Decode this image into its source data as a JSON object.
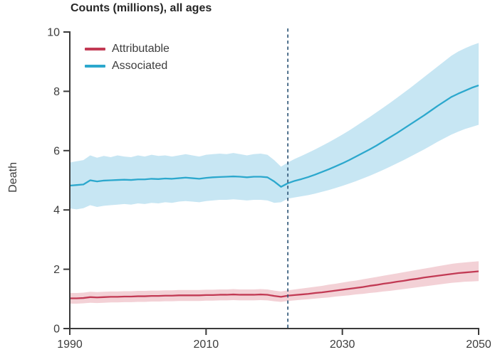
{
  "chart_data": {
    "type": "line",
    "title": "Counts (millions), all ages",
    "ylabel": "Death",
    "xlabel": "",
    "xlim": [
      1990,
      2050
    ],
    "ylim": [
      0,
      10
    ],
    "xticks": [
      1990,
      2010,
      2030,
      2050
    ],
    "yticks": [
      0,
      2,
      4,
      6,
      8,
      10
    ],
    "grid": false,
    "legend_position": "top-left-inside",
    "forecast_divider": {
      "x": 2022,
      "style": "dashed",
      "color": "#33597a"
    },
    "axis_color": "#3a3a3a",
    "x": [
      1990,
      1991,
      1992,
      1993,
      1994,
      1995,
      1996,
      1997,
      1998,
      1999,
      2000,
      2001,
      2002,
      2003,
      2004,
      2005,
      2006,
      2007,
      2008,
      2009,
      2010,
      2011,
      2012,
      2013,
      2014,
      2015,
      2016,
      2017,
      2018,
      2019,
      2020,
      2021,
      2022,
      2023,
      2024,
      2025,
      2026,
      2027,
      2028,
      2029,
      2030,
      2031,
      2032,
      2033,
      2034,
      2035,
      2036,
      2037,
      2038,
      2039,
      2040,
      2041,
      2042,
      2043,
      2044,
      2045,
      2046,
      2047,
      2048,
      2049,
      2050
    ],
    "series": [
      {
        "name": "Attributable",
        "color": "#c23a54",
        "band_color": "#f3d1d6",
        "values": [
          1.02,
          1.02,
          1.03,
          1.06,
          1.05,
          1.06,
          1.07,
          1.07,
          1.08,
          1.08,
          1.09,
          1.09,
          1.1,
          1.1,
          1.11,
          1.11,
          1.12,
          1.12,
          1.12,
          1.12,
          1.13,
          1.13,
          1.14,
          1.14,
          1.15,
          1.14,
          1.14,
          1.14,
          1.15,
          1.14,
          1.1,
          1.07,
          1.11,
          1.13,
          1.15,
          1.17,
          1.2,
          1.22,
          1.25,
          1.28,
          1.31,
          1.34,
          1.37,
          1.4,
          1.44,
          1.47,
          1.51,
          1.54,
          1.58,
          1.61,
          1.65,
          1.68,
          1.72,
          1.75,
          1.78,
          1.81,
          1.84,
          1.87,
          1.89,
          1.91,
          1.93
        ],
        "upper": [
          1.2,
          1.2,
          1.21,
          1.24,
          1.23,
          1.24,
          1.25,
          1.25,
          1.26,
          1.26,
          1.27,
          1.27,
          1.28,
          1.28,
          1.29,
          1.29,
          1.3,
          1.3,
          1.3,
          1.3,
          1.31,
          1.31,
          1.32,
          1.32,
          1.33,
          1.32,
          1.32,
          1.32,
          1.33,
          1.32,
          1.28,
          1.25,
          1.29,
          1.32,
          1.35,
          1.38,
          1.41,
          1.44,
          1.48,
          1.51,
          1.55,
          1.59,
          1.62,
          1.66,
          1.7,
          1.74,
          1.78,
          1.82,
          1.86,
          1.9,
          1.94,
          1.98,
          2.02,
          2.06,
          2.1,
          2.14,
          2.18,
          2.21,
          2.23,
          2.25,
          2.27
        ],
        "lower": [
          0.84,
          0.84,
          0.85,
          0.87,
          0.86,
          0.87,
          0.88,
          0.88,
          0.89,
          0.89,
          0.9,
          0.9,
          0.91,
          0.91,
          0.92,
          0.92,
          0.93,
          0.93,
          0.93,
          0.93,
          0.94,
          0.94,
          0.95,
          0.95,
          0.96,
          0.95,
          0.95,
          0.95,
          0.96,
          0.95,
          0.92,
          0.9,
          0.93,
          0.95,
          0.97,
          0.99,
          1.01,
          1.03,
          1.05,
          1.08,
          1.1,
          1.12,
          1.15,
          1.17,
          1.2,
          1.22,
          1.25,
          1.27,
          1.3,
          1.33,
          1.36,
          1.39,
          1.42,
          1.45,
          1.48,
          1.51,
          1.54,
          1.56,
          1.58,
          1.59,
          1.6
        ]
      },
      {
        "name": "Associated",
        "color": "#2ca8cd",
        "band_color": "#c7e6f3",
        "values": [
          4.82,
          4.84,
          4.86,
          5.0,
          4.96,
          4.99,
          5.0,
          5.01,
          5.02,
          5.01,
          5.03,
          5.03,
          5.05,
          5.04,
          5.06,
          5.05,
          5.07,
          5.09,
          5.07,
          5.05,
          5.08,
          5.1,
          5.11,
          5.12,
          5.13,
          5.12,
          5.1,
          5.12,
          5.12,
          5.1,
          4.96,
          4.78,
          4.9,
          4.98,
          5.04,
          5.11,
          5.19,
          5.28,
          5.37,
          5.47,
          5.57,
          5.68,
          5.8,
          5.92,
          6.04,
          6.17,
          6.31,
          6.45,
          6.59,
          6.74,
          6.89,
          7.04,
          7.19,
          7.35,
          7.51,
          7.66,
          7.81,
          7.92,
          8.02,
          8.12,
          8.2
        ],
        "upper": [
          5.6,
          5.64,
          5.68,
          5.84,
          5.76,
          5.82,
          5.78,
          5.84,
          5.8,
          5.78,
          5.84,
          5.8,
          5.86,
          5.82,
          5.84,
          5.8,
          5.84,
          5.88,
          5.84,
          5.8,
          5.86,
          5.88,
          5.9,
          5.88,
          5.92,
          5.88,
          5.84,
          5.88,
          5.9,
          5.86,
          5.68,
          5.46,
          5.6,
          5.72,
          5.82,
          5.93,
          6.04,
          6.16,
          6.28,
          6.41,
          6.54,
          6.68,
          6.83,
          6.98,
          7.13,
          7.29,
          7.45,
          7.61,
          7.78,
          7.95,
          8.12,
          8.3,
          8.48,
          8.66,
          8.84,
          9.02,
          9.2,
          9.34,
          9.45,
          9.55,
          9.63
        ],
        "lower": [
          4.05,
          4.02,
          4.06,
          4.16,
          4.1,
          4.14,
          4.16,
          4.18,
          4.2,
          4.18,
          4.22,
          4.2,
          4.24,
          4.22,
          4.26,
          4.24,
          4.28,
          4.3,
          4.28,
          4.26,
          4.3,
          4.32,
          4.34,
          4.34,
          4.36,
          4.34,
          4.32,
          4.34,
          4.34,
          4.32,
          4.24,
          4.26,
          4.38,
          4.42,
          4.46,
          4.5,
          4.55,
          4.61,
          4.67,
          4.74,
          4.81,
          4.89,
          4.97,
          5.06,
          5.15,
          5.25,
          5.35,
          5.46,
          5.57,
          5.68,
          5.8,
          5.92,
          6.04,
          6.17,
          6.3,
          6.42,
          6.54,
          6.64,
          6.73,
          6.8,
          6.87
        ]
      }
    ],
    "legend": [
      {
        "label": "Attributable",
        "color": "#c23a54"
      },
      {
        "label": "Associated",
        "color": "#2ca8cd"
      }
    ]
  }
}
